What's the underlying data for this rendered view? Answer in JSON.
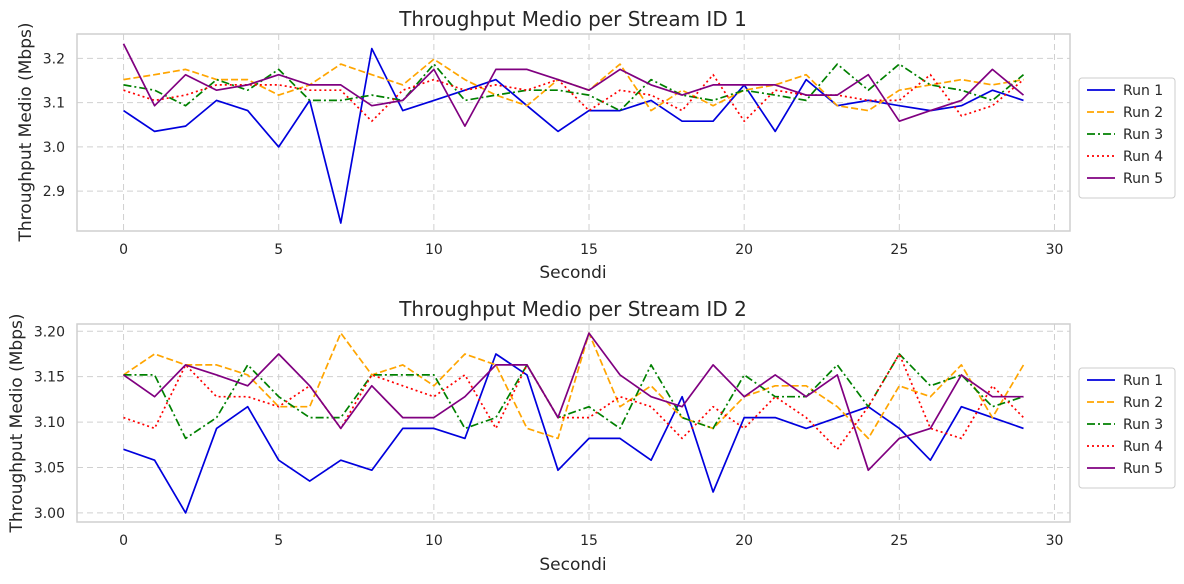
{
  "chart_data": [
    {
      "type": "line",
      "title": "Throughput Medio per Stream ID 1",
      "xlabel": "Secondi",
      "ylabel": "Throughput Medio (Mbps)",
      "xlim": [
        -1.5,
        30.5
      ],
      "ylim": [
        2.81,
        3.255
      ],
      "xticks": [
        0,
        5,
        10,
        15,
        20,
        25,
        30
      ],
      "yticks": [
        2.9,
        3.0,
        3.1,
        3.2
      ],
      "ytick_labels": [
        "2.9",
        "3.0",
        "3.1",
        "3.2"
      ],
      "grid": true,
      "legend": "right",
      "x": [
        0,
        1,
        2,
        3,
        4,
        5,
        6,
        7,
        8,
        9,
        10,
        11,
        12,
        13,
        14,
        15,
        16,
        17,
        18,
        19,
        20,
        21,
        22,
        23,
        24,
        25,
        26,
        27,
        28,
        29
      ],
      "series": [
        {
          "name": "Run 1",
          "color": "#0000dd",
          "dash": "solid",
          "values": [
            3.082,
            3.035,
            3.047,
            3.105,
            3.082,
            3.0,
            3.105,
            2.828,
            3.222,
            3.082,
            3.105,
            3.128,
            3.152,
            3.093,
            3.035,
            3.082,
            3.082,
            3.105,
            3.058,
            3.058,
            3.14,
            3.035,
            3.152,
            3.093,
            3.105,
            3.093,
            3.082,
            3.093,
            3.128,
            3.105
          ]
        },
        {
          "name": "Run 2",
          "color": "#ffa500",
          "dash": "dashed",
          "values": [
            3.152,
            3.163,
            3.175,
            3.152,
            3.152,
            3.117,
            3.14,
            3.187,
            3.163,
            3.14,
            3.198,
            3.152,
            3.117,
            3.093,
            3.152,
            3.128,
            3.187,
            3.082,
            3.128,
            3.093,
            3.128,
            3.14,
            3.163,
            3.093,
            3.082,
            3.128,
            3.14,
            3.152,
            3.14,
            3.152
          ]
        },
        {
          "name": "Run 3",
          "color": "#008000",
          "dash": "dashdot",
          "values": [
            3.14,
            3.128,
            3.093,
            3.152,
            3.128,
            3.175,
            3.105,
            3.105,
            3.117,
            3.105,
            3.187,
            3.105,
            3.117,
            3.128,
            3.128,
            3.117,
            3.082,
            3.152,
            3.117,
            3.105,
            3.128,
            3.117,
            3.105,
            3.187,
            3.128,
            3.187,
            3.14,
            3.128,
            3.105,
            3.163
          ]
        },
        {
          "name": "Run 4",
          "color": "#ff0000",
          "dash": "dotted",
          "values": [
            3.128,
            3.105,
            3.117,
            3.14,
            3.14,
            3.14,
            3.128,
            3.128,
            3.058,
            3.128,
            3.152,
            3.128,
            3.14,
            3.128,
            3.152,
            3.082,
            3.128,
            3.117,
            3.082,
            3.163,
            3.058,
            3.128,
            3.117,
            3.117,
            3.105,
            3.105,
            3.163,
            3.07,
            3.093,
            3.152
          ]
        },
        {
          "name": "Run 5",
          "color": "#800080",
          "dash": "solid",
          "values": [
            3.233,
            3.093,
            3.163,
            3.128,
            3.14,
            3.163,
            3.14,
            3.14,
            3.093,
            3.105,
            3.175,
            3.047,
            3.175,
            3.175,
            3.152,
            3.128,
            3.175,
            3.14,
            3.117,
            3.14,
            3.14,
            3.14,
            3.117,
            3.117,
            3.163,
            3.058,
            3.082,
            3.105,
            3.175,
            3.117
          ]
        }
      ]
    },
    {
      "type": "line",
      "title": "Throughput Medio per Stream ID 2",
      "xlabel": "Secondi",
      "ylabel": "Throughput Medio (Mbps)",
      "xlim": [
        -1.5,
        30.5
      ],
      "ylim": [
        2.99,
        3.208
      ],
      "xticks": [
        0,
        5,
        10,
        15,
        20,
        25,
        30
      ],
      "yticks": [
        3.0,
        3.05,
        3.1,
        3.15,
        3.2
      ],
      "ytick_labels": [
        "3.00",
        "3.05",
        "3.10",
        "3.15",
        "3.20"
      ],
      "grid": true,
      "legend": "right",
      "x": [
        0,
        1,
        2,
        3,
        4,
        5,
        6,
        7,
        8,
        9,
        10,
        11,
        12,
        13,
        14,
        15,
        16,
        17,
        18,
        19,
        20,
        21,
        22,
        23,
        24,
        25,
        26,
        27,
        28,
        29
      ],
      "series": [
        {
          "name": "Run 1",
          "color": "#0000dd",
          "dash": "solid",
          "values": [
            3.07,
            3.058,
            3.0,
            3.093,
            3.117,
            3.058,
            3.035,
            3.058,
            3.047,
            3.093,
            3.093,
            3.082,
            3.175,
            3.152,
            3.047,
            3.082,
            3.082,
            3.058,
            3.128,
            3.023,
            3.105,
            3.105,
            3.093,
            3.105,
            3.117,
            3.093,
            3.058,
            3.117,
            3.105,
            3.093
          ]
        },
        {
          "name": "Run 2",
          "color": "#ffa500",
          "dash": "dashed",
          "values": [
            3.152,
            3.175,
            3.163,
            3.163,
            3.152,
            3.117,
            3.117,
            3.198,
            3.152,
            3.163,
            3.14,
            3.175,
            3.163,
            3.093,
            3.082,
            3.198,
            3.117,
            3.14,
            3.105,
            3.093,
            3.128,
            3.14,
            3.14,
            3.117,
            3.082,
            3.14,
            3.128,
            3.163,
            3.105,
            3.163
          ]
        },
        {
          "name": "Run 3",
          "color": "#008000",
          "dash": "dashdot",
          "values": [
            3.152,
            3.152,
            3.082,
            3.105,
            3.163,
            3.128,
            3.105,
            3.105,
            3.152,
            3.152,
            3.152,
            3.093,
            3.105,
            3.163,
            3.105,
            3.117,
            3.093,
            3.163,
            3.105,
            3.093,
            3.152,
            3.128,
            3.128,
            3.163,
            3.117,
            3.175,
            3.14,
            3.152,
            3.117,
            3.128
          ]
        },
        {
          "name": "Run 4",
          "color": "#ff0000",
          "dash": "dotted",
          "values": [
            3.105,
            3.093,
            3.163,
            3.128,
            3.128,
            3.117,
            3.14,
            3.093,
            3.152,
            3.14,
            3.128,
            3.152,
            3.093,
            3.163,
            3.105,
            3.105,
            3.128,
            3.117,
            3.082,
            3.117,
            3.093,
            3.128,
            3.105,
            3.07,
            3.117,
            3.175,
            3.093,
            3.082,
            3.14,
            3.105
          ]
        },
        {
          "name": "Run 5",
          "color": "#800080",
          "dash": "solid",
          "values": [
            3.152,
            3.128,
            3.163,
            3.152,
            3.14,
            3.175,
            3.14,
            3.093,
            3.14,
            3.105,
            3.105,
            3.128,
            3.163,
            3.163,
            3.105,
            3.198,
            3.152,
            3.128,
            3.117,
            3.163,
            3.128,
            3.152,
            3.128,
            3.152,
            3.047,
            3.082,
            3.093,
            3.152,
            3.128,
            3.128
          ]
        }
      ]
    }
  ]
}
